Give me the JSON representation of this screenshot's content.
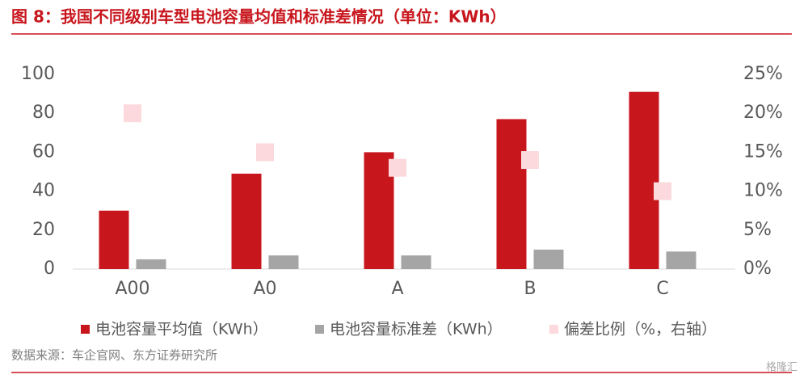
{
  "chart_data": {
    "type": "bar",
    "title": "图 8：我国不同级别车型电池容量均值和标准差情况（单位：KWh）",
    "source": "数据来源：车企官网、东方证券研究所",
    "watermark": "格隆汇",
    "categories": [
      "A00",
      "A0",
      "A",
      "B",
      "C"
    ],
    "series": [
      {
        "name": "电池容量平均值（KWh）",
        "color": "#c8161d",
        "values": [
          30,
          49,
          60,
          77,
          91
        ]
      },
      {
        "name": "电池容量标准差（KWh）",
        "color": "#a5a5a5",
        "values": [
          5,
          7,
          7,
          10,
          9
        ]
      },
      {
        "name": "偏差比例（%，右轴）",
        "color": "#fbd9dc",
        "type": "scatter",
        "axis": "y2",
        "values": [
          20,
          15,
          13,
          14,
          10
        ]
      }
    ],
    "ylim": [
      0,
      100
    ],
    "yticks": [
      0,
      20,
      40,
      60,
      80,
      100
    ],
    "y2lim": [
      0,
      25
    ],
    "y2ticks": [
      {
        "value": 0,
        "label": "0%"
      },
      {
        "value": 5,
        "label": "5%"
      },
      {
        "value": 10,
        "label": "10%"
      },
      {
        "value": 15,
        "label": "15%"
      },
      {
        "value": 20,
        "label": "20%"
      },
      {
        "value": 25,
        "label": "25%"
      }
    ],
    "legend": "bottom"
  }
}
